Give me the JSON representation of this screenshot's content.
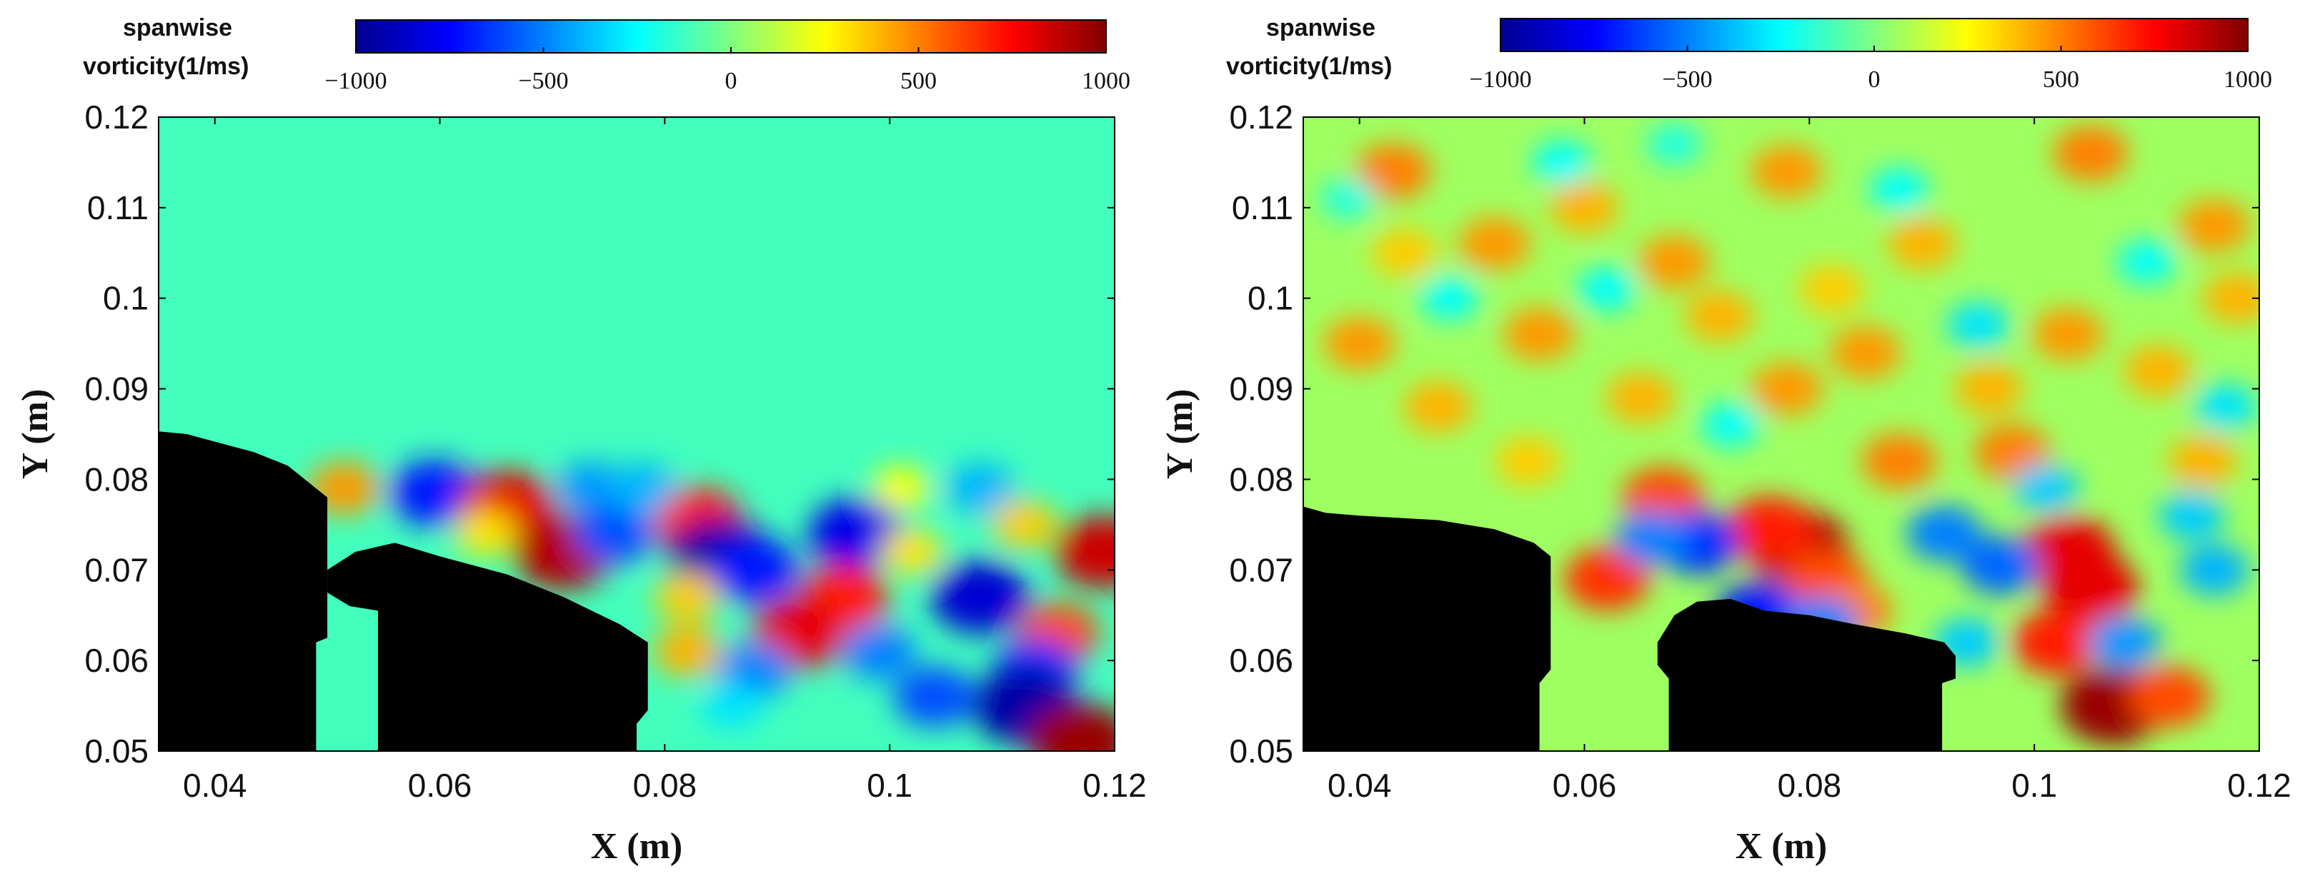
{
  "colors": {
    "jet": [
      "#00008f",
      "#0000ff",
      "#00ffff",
      "#ffff00",
      "#ff0000",
      "#800000"
    ],
    "obstacle": "#000000",
    "axis": "#000000"
  },
  "chart_data": [
    {
      "type": "heatmap",
      "name": "left-panel",
      "title": "",
      "xlabel": "X (m)",
      "ylabel": "Y (m)",
      "xlim": [
        0.035,
        0.12
      ],
      "ylim": [
        0.05,
        0.12
      ],
      "xticks": [
        0.04,
        0.06,
        0.08,
        0.1,
        0.12
      ],
      "xtick_labels": [
        "0.04",
        "0.06",
        "0.08",
        "0.1",
        "0.12"
      ],
      "yticks": [
        0.05,
        0.06,
        0.07,
        0.08,
        0.09,
        0.1,
        0.11,
        0.12
      ],
      "ytick_labels": [
        "0.05",
        "0.06",
        "0.07",
        "0.08",
        "0.09",
        "0.1",
        "0.11",
        "0.12"
      ],
      "background_value": -120,
      "colorbar": {
        "label_line1": "spanwise",
        "label_line2": "vorticity(1/ms)",
        "range": [
          -1000,
          1000
        ],
        "ticks": [
          -1000,
          -500,
          0,
          500,
          1000
        ],
        "tick_labels": [
          "−1000",
          "−500",
          "0",
          "500",
          "1000"
        ]
      },
      "structures": [
        {
          "x": 0.0515,
          "y": 0.079,
          "value": 450
        },
        {
          "x": 0.0595,
          "y": 0.0785,
          "value": -700
        },
        {
          "x": 0.066,
          "y": 0.077,
          "value": 800
        },
        {
          "x": 0.0735,
          "y": 0.079,
          "value": -450
        },
        {
          "x": 0.071,
          "y": 0.072,
          "value": 900
        },
        {
          "x": 0.0755,
          "y": 0.074,
          "value": -600
        },
        {
          "x": 0.083,
          "y": 0.0755,
          "value": 700
        },
        {
          "x": 0.085,
          "y": 0.0715,
          "value": -950
        },
        {
          "x": 0.088,
          "y": 0.07,
          "value": -700
        },
        {
          "x": 0.082,
          "y": 0.067,
          "value": 350
        },
        {
          "x": 0.097,
          "y": 0.074,
          "value": -800
        },
        {
          "x": 0.096,
          "y": 0.067,
          "value": 700
        },
        {
          "x": 0.092,
          "y": 0.063,
          "value": 800
        },
        {
          "x": 0.108,
          "y": 0.067,
          "value": -850
        },
        {
          "x": 0.102,
          "y": 0.072,
          "value": 300
        },
        {
          "x": 0.112,
          "y": 0.075,
          "value": 350
        },
        {
          "x": 0.115,
          "y": 0.063,
          "value": 600
        },
        {
          "x": 0.113,
          "y": 0.059,
          "value": -650
        },
        {
          "x": 0.112,
          "y": 0.055,
          "value": -950
        },
        {
          "x": 0.117,
          "y": 0.051,
          "value": 950
        },
        {
          "x": 0.119,
          "y": 0.072,
          "value": 850
        },
        {
          "x": 0.088,
          "y": 0.059,
          "value": -500
        },
        {
          "x": 0.082,
          "y": 0.061,
          "value": 400
        },
        {
          "x": 0.099,
          "y": 0.061,
          "value": -500
        },
        {
          "x": 0.104,
          "y": 0.056,
          "value": -600
        },
        {
          "x": 0.086,
          "y": 0.055,
          "value": -300
        },
        {
          "x": 0.078,
          "y": 0.079,
          "value": -400
        },
        {
          "x": 0.064,
          "y": 0.074,
          "value": 300
        },
        {
          "x": 0.101,
          "y": 0.079,
          "value": 250
        },
        {
          "x": 0.108,
          "y": 0.079,
          "value": -400
        }
      ],
      "obstacles": [
        [
          [
            0.035,
            0.05
          ],
          [
            0.035,
            0.0853
          ],
          [
            0.0375,
            0.085
          ],
          [
            0.0405,
            0.084
          ],
          [
            0.0435,
            0.083
          ],
          [
            0.0465,
            0.0815
          ],
          [
            0.049,
            0.079
          ],
          [
            0.05,
            0.078
          ],
          [
            0.05,
            0.0625
          ],
          [
            0.049,
            0.062
          ],
          [
            0.049,
            0.05
          ]
        ],
        [
          [
            0.0545,
            0.05
          ],
          [
            0.0545,
            0.0655
          ],
          [
            0.052,
            0.066
          ],
          [
            0.05,
            0.0675
          ],
          [
            0.05,
            0.07
          ],
          [
            0.0525,
            0.072
          ],
          [
            0.056,
            0.073
          ],
          [
            0.06,
            0.0715
          ],
          [
            0.066,
            0.0695
          ],
          [
            0.071,
            0.067
          ],
          [
            0.076,
            0.064
          ],
          [
            0.0785,
            0.062
          ],
          [
            0.0785,
            0.0545
          ],
          [
            0.0775,
            0.053
          ],
          [
            0.0775,
            0.05
          ]
        ]
      ]
    },
    {
      "type": "heatmap",
      "name": "right-panel",
      "title": "",
      "xlabel": "X (m)",
      "ylabel": "Y (m)",
      "xlim": [
        0.035,
        0.12
      ],
      "ylim": [
        0.05,
        0.12
      ],
      "xticks": [
        0.04,
        0.06,
        0.08,
        0.1,
        0.12
      ],
      "xtick_labels": [
        "0.04",
        "0.06",
        "0.08",
        "0.1",
        "0.12"
      ],
      "yticks": [
        0.05,
        0.06,
        0.07,
        0.08,
        0.09,
        0.1,
        0.11,
        0.12
      ],
      "ytick_labels": [
        "0.05",
        "0.06",
        "0.07",
        "0.08",
        "0.09",
        "0.1",
        "0.11",
        "0.12"
      ],
      "background_value": 60,
      "colorbar": {
        "label_line1": "spanwise",
        "label_line2": "vorticity(1/ms)",
        "range": [
          -1000,
          1000
        ],
        "ticks": [
          -1000,
          -500,
          0,
          500,
          1000
        ],
        "tick_labels": [
          "−1000",
          "−500",
          "0",
          "500",
          "1000"
        ]
      },
      "structures": [
        {
          "x": 0.079,
          "y": 0.0725,
          "value": 900
        },
        {
          "x": 0.0765,
          "y": 0.0745,
          "value": 700
        },
        {
          "x": 0.0815,
          "y": 0.069,
          "value": 600
        },
        {
          "x": 0.084,
          "y": 0.0655,
          "value": 500
        },
        {
          "x": 0.103,
          "y": 0.072,
          "value": 800
        },
        {
          "x": 0.105,
          "y": 0.068,
          "value": 800
        },
        {
          "x": 0.102,
          "y": 0.062,
          "value": 700
        },
        {
          "x": 0.107,
          "y": 0.055,
          "value": 950
        },
        {
          "x": 0.112,
          "y": 0.056,
          "value": 600
        },
        {
          "x": 0.067,
          "y": 0.078,
          "value": 600
        },
        {
          "x": 0.062,
          "y": 0.069,
          "value": 650
        },
        {
          "x": 0.07,
          "y": 0.073,
          "value": -650
        },
        {
          "x": 0.066,
          "y": 0.0735,
          "value": -500
        },
        {
          "x": 0.0755,
          "y": 0.065,
          "value": -700
        },
        {
          "x": 0.081,
          "y": 0.064,
          "value": -500
        },
        {
          "x": 0.092,
          "y": 0.074,
          "value": -500
        },
        {
          "x": 0.097,
          "y": 0.0705,
          "value": -550
        },
        {
          "x": 0.108,
          "y": 0.062,
          "value": -450
        },
        {
          "x": 0.116,
          "y": 0.07,
          "value": -400
        },
        {
          "x": 0.094,
          "y": 0.062,
          "value": -350
        },
        {
          "x": 0.088,
          "y": 0.082,
          "value": 500
        },
        {
          "x": 0.078,
          "y": 0.09,
          "value": 450
        },
        {
          "x": 0.043,
          "y": 0.114,
          "value": 500
        },
        {
          "x": 0.052,
          "y": 0.106,
          "value": 450
        },
        {
          "x": 0.06,
          "y": 0.11,
          "value": 400
        },
        {
          "x": 0.068,
          "y": 0.104,
          "value": 450
        },
        {
          "x": 0.078,
          "y": 0.114,
          "value": 450
        },
        {
          "x": 0.09,
          "y": 0.106,
          "value": 400
        },
        {
          "x": 0.105,
          "y": 0.116,
          "value": 500
        },
        {
          "x": 0.116,
          "y": 0.108,
          "value": 450
        },
        {
          "x": 0.04,
          "y": 0.095,
          "value": 450
        },
        {
          "x": 0.047,
          "y": 0.088,
          "value": 400
        },
        {
          "x": 0.056,
          "y": 0.096,
          "value": 450
        },
        {
          "x": 0.065,
          "y": 0.089,
          "value": 400
        },
        {
          "x": 0.072,
          "y": 0.098,
          "value": 400
        },
        {
          "x": 0.085,
          "y": 0.094,
          "value": 450
        },
        {
          "x": 0.096,
          "y": 0.09,
          "value": 400
        },
        {
          "x": 0.103,
          "y": 0.096,
          "value": 450
        },
        {
          "x": 0.111,
          "y": 0.092,
          "value": 400
        },
        {
          "x": 0.118,
          "y": 0.1,
          "value": 400
        },
        {
          "x": 0.098,
          "y": 0.083,
          "value": 500
        },
        {
          "x": 0.115,
          "y": 0.082,
          "value": 400
        },
        {
          "x": 0.055,
          "y": 0.082,
          "value": 350
        },
        {
          "x": 0.044,
          "y": 0.105,
          "value": 350
        },
        {
          "x": 0.082,
          "y": 0.101,
          "value": 350
        },
        {
          "x": 0.048,
          "y": 0.1,
          "value": -250
        },
        {
          "x": 0.058,
          "y": 0.115,
          "value": -250
        },
        {
          "x": 0.073,
          "y": 0.086,
          "value": -250
        },
        {
          "x": 0.088,
          "y": 0.112,
          "value": -250
        },
        {
          "x": 0.095,
          "y": 0.097,
          "value": -300
        },
        {
          "x": 0.11,
          "y": 0.104,
          "value": -250
        },
        {
          "x": 0.117,
          "y": 0.088,
          "value": -300
        },
        {
          "x": 0.062,
          "y": 0.101,
          "value": -250
        },
        {
          "x": 0.101,
          "y": 0.079,
          "value": -350
        },
        {
          "x": 0.114,
          "y": 0.076,
          "value": -350
        },
        {
          "x": 0.039,
          "y": 0.111,
          "value": -200
        },
        {
          "x": 0.068,
          "y": 0.117,
          "value": -200
        }
      ],
      "obstacles": [
        [
          [
            0.035,
            0.05
          ],
          [
            0.035,
            0.077
          ],
          [
            0.037,
            0.0763
          ],
          [
            0.04,
            0.076
          ],
          [
            0.047,
            0.0755
          ],
          [
            0.052,
            0.0745
          ],
          [
            0.0555,
            0.073
          ],
          [
            0.057,
            0.0715
          ],
          [
            0.057,
            0.059
          ],
          [
            0.056,
            0.0575
          ],
          [
            0.056,
            0.05
          ]
        ],
        [
          [
            0.0675,
            0.05
          ],
          [
            0.0675,
            0.058
          ],
          [
            0.0665,
            0.0595
          ],
          [
            0.0665,
            0.062
          ],
          [
            0.068,
            0.065
          ],
          [
            0.07,
            0.0665
          ],
          [
            0.073,
            0.0668
          ],
          [
            0.076,
            0.0655
          ],
          [
            0.08,
            0.065
          ],
          [
            0.084,
            0.064
          ],
          [
            0.0885,
            0.063
          ],
          [
            0.092,
            0.062
          ],
          [
            0.093,
            0.0605
          ],
          [
            0.093,
            0.058
          ],
          [
            0.0918,
            0.0575
          ],
          [
            0.0918,
            0.05
          ]
        ]
      ]
    }
  ]
}
